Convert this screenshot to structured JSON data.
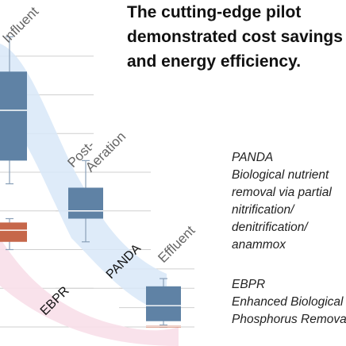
{
  "headline": {
    "lines": [
      "The cutting-edge pilot",
      "demonstrated cost savings",
      "and energy efficiency."
    ]
  },
  "notes": [
    {
      "title": "PANDA",
      "lines": [
        "Biological nutrient",
        "removal via partial",
        "nitrification/",
        "denitrification/",
        "anammox"
      ]
    },
    {
      "title": "EBPR",
      "lines": [
        "Enhanced Biological",
        "Phosphorus Removal"
      ]
    }
  ],
  "chart_data": {
    "type": "box",
    "categories": [
      "Influent",
      "Post-Aeration",
      "Effluent"
    ],
    "processes": [
      {
        "name": "PANDA",
        "band_color": "#d8e8f8"
      },
      {
        "name": "EBPR",
        "band_color": "#f8dfe9"
      }
    ],
    "series": [
      {
        "name": "PANDA",
        "color": "#5f82a5",
        "boxes": [
          {
            "category": "Influent",
            "min": 3.7,
            "q1": 4.3,
            "median": 5.6,
            "q3": 6.6,
            "max": 7.5
          },
          {
            "category": "Post-Aeration",
            "min": 2.2,
            "q1": 2.8,
            "median": 3.0,
            "q3": 3.6,
            "max": 4.3
          },
          {
            "category": "Effluent",
            "min": 0.0,
            "q1": 0.15,
            "median": 0.55,
            "q3": 1.05,
            "max": 1.25
          }
        ]
      },
      {
        "name": "EBPR",
        "color": "#c6674a",
        "boxes": [
          {
            "category": "Influent",
            "min": 2.0,
            "q1": 2.2,
            "median": 2.5,
            "q3": 2.7,
            "max": 2.8
          },
          {
            "category": "Effluent",
            "min": 0.0,
            "q1": 0.0,
            "median": 0.02,
            "q3": 0.04,
            "max": 0.05
          }
        ]
      }
    ],
    "ylim": [
      0,
      8
    ],
    "grid": true
  },
  "colors": {
    "gridline": "#cfcfcf",
    "whisker": "#8aa0b8",
    "stage_label": "#666666",
    "text": "#111111"
  }
}
